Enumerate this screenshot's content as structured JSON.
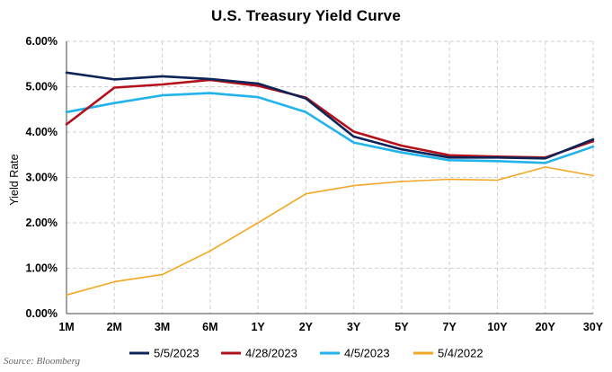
{
  "chart_data": {
    "type": "line",
    "title": "U.S. Treasury Yield Curve",
    "xlabel": "",
    "ylabel": "Yield Rate",
    "categories": [
      "1M",
      "2M",
      "3M",
      "6M",
      "1Y",
      "2Y",
      "3Y",
      "5Y",
      "7Y",
      "10Y",
      "20Y",
      "30Y"
    ],
    "ylim": [
      0,
      6
    ],
    "yticks": [
      "0.00%",
      "1.00%",
      "2.00%",
      "3.00%",
      "4.00%",
      "5.00%",
      "6.00%"
    ],
    "grid": true,
    "legend_position": "bottom",
    "series": [
      {
        "name": "5/5/2023",
        "color": "#0d2457",
        "values": [
          5.31,
          5.16,
          5.23,
          5.17,
          5.07,
          4.74,
          3.9,
          3.62,
          3.44,
          3.44,
          3.42,
          3.84
        ]
      },
      {
        "name": "4/28/2023",
        "color": "#b3101c",
        "values": [
          4.17,
          4.98,
          5.05,
          5.15,
          5.02,
          4.76,
          4.01,
          3.7,
          3.49,
          3.46,
          3.44,
          3.8
        ]
      },
      {
        "name": "4/5/2023",
        "color": "#22b2ec",
        "values": [
          4.44,
          4.64,
          4.81,
          4.86,
          4.77,
          4.44,
          3.77,
          3.55,
          3.38,
          3.36,
          3.32,
          3.68
        ]
      },
      {
        "name": "5/4/2022",
        "color": "#f5a623",
        "values": [
          0.41,
          0.7,
          0.86,
          1.38,
          2.0,
          2.64,
          2.82,
          2.91,
          2.96,
          2.94,
          3.23,
          3.04
        ]
      }
    ]
  },
  "source_note": "Source: Bloomberg"
}
